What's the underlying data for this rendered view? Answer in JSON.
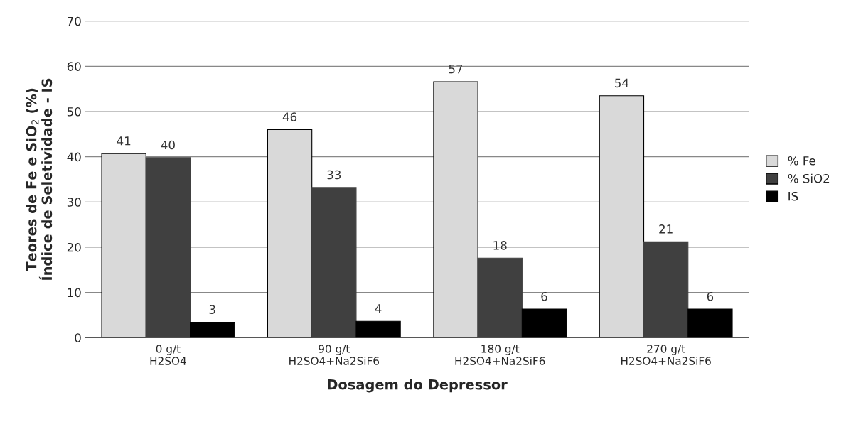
{
  "chart_data": {
    "type": "bar",
    "xlabel": "Dosagem do Depressor",
    "ylabel": "Teores de Fe e SiO$_{2}$ (%)\nÍndice de Seletividade - IS",
    "categories": [
      "0 g/t\nH2SO4",
      "90 g/t\nH2SO4+Na2SiF6",
      "180 g/t\nH2SO4+Na2SiF6",
      "270 g/t\nH2SO4+Na2SiF6"
    ],
    "series": [
      {
        "name": "% Fe",
        "color": "#d9d9d9",
        "values": [
          40.7,
          46.0,
          56.6,
          53.5
        ],
        "value_labels": [
          "41",
          "46",
          "57",
          "54"
        ]
      },
      {
        "name": "% SiO2",
        "color": "#404040",
        "values": [
          39.8,
          33.2,
          17.6,
          21.2
        ],
        "value_labels": [
          "40",
          "33",
          "18",
          "21"
        ]
      },
      {
        "name": "IS",
        "color": "#000000",
        "values": [
          3.4,
          3.6,
          6.3,
          6.3
        ],
        "value_labels": [
          "3",
          "4",
          "6",
          "6"
        ]
      }
    ],
    "ylim": [
      0,
      70
    ],
    "yticks": [
      0,
      10,
      20,
      30,
      40,
      50,
      60,
      70
    ],
    "grid": "y",
    "legend": "right"
  }
}
